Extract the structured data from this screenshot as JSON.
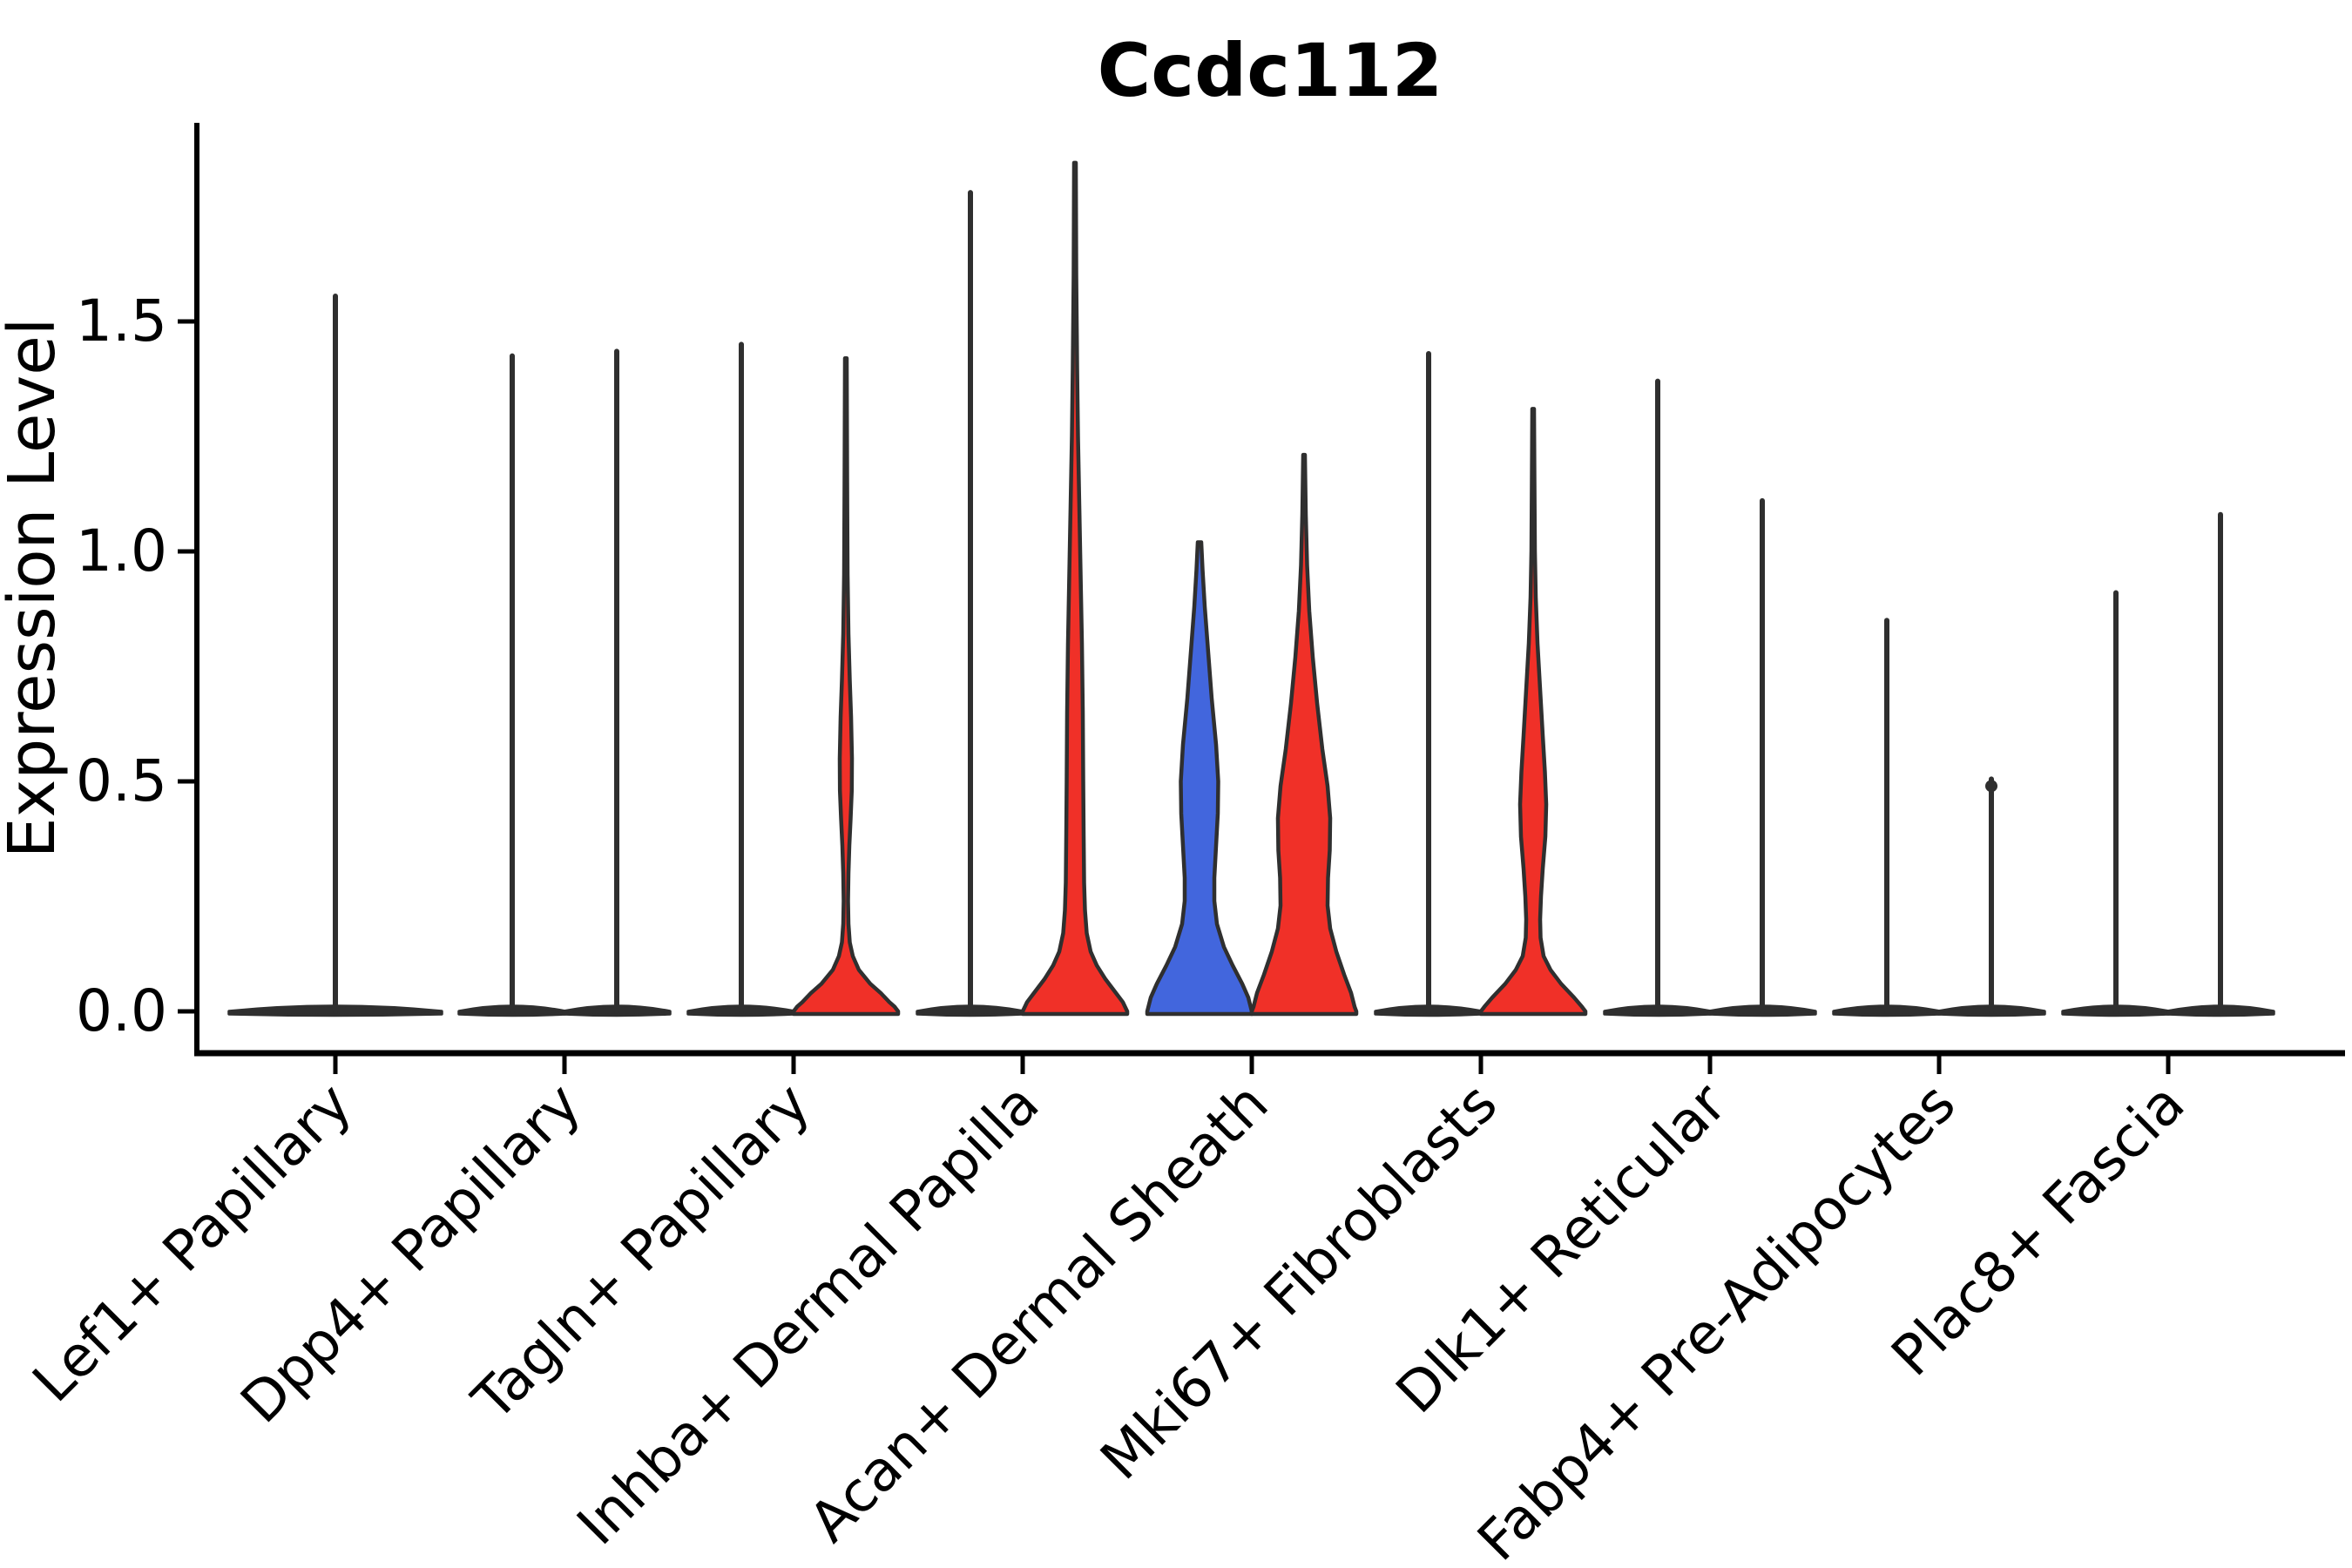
{
  "chart_data": {
    "type": "violin",
    "title": "Ccdc112",
    "xlabel": "",
    "ylabel": "Expression Level",
    "ylim": [
      0,
      1.9
    ],
    "yticks": [
      "0.0",
      "0.5",
      "1.0",
      "1.5"
    ],
    "ytick_values": [
      0.0,
      0.5,
      1.0,
      1.5
    ],
    "legend_position": "none",
    "grid": false,
    "palette": {
      "red": "#f03028",
      "blue": "#4266dd",
      "edge": "#2f2f2f",
      "text": "#000000"
    },
    "categories": [
      {
        "label": "Lef1+ Papillary",
        "violins": [
          {
            "pos": "center",
            "color": "none",
            "max": 1.555
          }
        ]
      },
      {
        "label": "Dpp4+ Papillary",
        "violins": [
          {
            "pos": "left",
            "color": "none",
            "max": 1.425
          },
          {
            "pos": "right",
            "color": "none",
            "max": 1.435
          }
        ]
      },
      {
        "label": "Tagln+ Papillary",
        "violins": [
          {
            "pos": "left",
            "color": "none",
            "max": 1.45
          },
          {
            "pos": "right",
            "color": "red",
            "max": 1.42,
            "profile": [
              [
                1.42,
                1
              ],
              [
                1.15,
                1.5
              ],
              [
                0.95,
                2
              ],
              [
                0.82,
                3
              ],
              [
                0.72,
                4.5
              ],
              [
                0.64,
                6
              ],
              [
                0.55,
                7
              ],
              [
                0.48,
                6.8
              ],
              [
                0.42,
                5.5
              ],
              [
                0.36,
                4
              ],
              [
                0.3,
                3
              ],
              [
                0.24,
                2.5
              ],
              [
                0.19,
                3
              ],
              [
                0.15,
                4.5
              ],
              [
                0.12,
                8
              ],
              [
                0.09,
                15
              ],
              [
                0.06,
                28
              ],
              [
                0.04,
                40
              ],
              [
                0.02,
                50
              ],
              [
                0.01,
                56
              ],
              [
                0,
                60
              ]
            ]
          }
        ]
      },
      {
        "label": "Inhba+ Dermal Papilla",
        "violins": [
          {
            "pos": "left",
            "color": "none",
            "max": 1.78
          },
          {
            "pos": "right",
            "color": "red",
            "max": 1.845,
            "profile": [
              [
                1.845,
                1
              ],
              [
                1.6,
                1.5
              ],
              [
                1.4,
                2.5
              ],
              [
                1.25,
                3.5
              ],
              [
                1.1,
                5
              ],
              [
                0.95,
                6.5
              ],
              [
                0.8,
                8
              ],
              [
                0.65,
                9
              ],
              [
                0.5,
                9.5
              ],
              [
                0.38,
                10
              ],
              [
                0.28,
                10.5
              ],
              [
                0.22,
                11.5
              ],
              [
                0.17,
                13.5
              ],
              [
                0.13,
                18
              ],
              [
                0.1,
                25
              ],
              [
                0.07,
                35
              ],
              [
                0.04,
                47
              ],
              [
                0.02,
                55
              ],
              [
                0,
                60
              ]
            ]
          }
        ]
      },
      {
        "label": "Acan+ Dermal Sheath",
        "violins": [
          {
            "pos": "left",
            "color": "blue",
            "max": 1.02,
            "profile": [
              [
                1.02,
                2
              ],
              [
                0.96,
                3.5
              ],
              [
                0.88,
                6
              ],
              [
                0.78,
                10
              ],
              [
                0.68,
                14
              ],
              [
                0.58,
                19
              ],
              [
                0.5,
                21.5
              ],
              [
                0.43,
                21
              ],
              [
                0.36,
                19
              ],
              [
                0.29,
                17
              ],
              [
                0.24,
                17
              ],
              [
                0.19,
                20
              ],
              [
                0.14,
                28
              ],
              [
                0.1,
                38
              ],
              [
                0.06,
                49
              ],
              [
                0.03,
                56
              ],
              [
                0,
                60
              ]
            ]
          },
          {
            "pos": "right",
            "color": "red",
            "max": 1.21,
            "profile": [
              [
                1.21,
                1
              ],
              [
                1.08,
                2
              ],
              [
                0.97,
                3.5
              ],
              [
                0.87,
                6
              ],
              [
                0.77,
                10
              ],
              [
                0.67,
                15
              ],
              [
                0.57,
                21
              ],
              [
                0.49,
                27
              ],
              [
                0.42,
                30
              ],
              [
                0.35,
                29.5
              ],
              [
                0.29,
                27.5
              ],
              [
                0.23,
                27
              ],
              [
                0.18,
                30
              ],
              [
                0.13,
                37
              ],
              [
                0.08,
                46
              ],
              [
                0.04,
                54
              ],
              [
                0.01,
                58
              ],
              [
                0,
                60
              ]
            ]
          }
        ]
      },
      {
        "label": "Mki67+ Fibroblasts",
        "violins": [
          {
            "pos": "left",
            "color": "none",
            "max": 1.43
          },
          {
            "pos": "right",
            "color": "red",
            "max": 1.31,
            "profile": [
              [
                1.31,
                1
              ],
              [
                1.15,
                1.5
              ],
              [
                1.0,
                2
              ],
              [
                0.9,
                3
              ],
              [
                0.8,
                5
              ],
              [
                0.7,
                8
              ],
              [
                0.6,
                11
              ],
              [
                0.52,
                13.5
              ],
              [
                0.45,
                15
              ],
              [
                0.38,
                14
              ],
              [
                0.31,
                11
              ],
              [
                0.25,
                9
              ],
              [
                0.2,
                8
              ],
              [
                0.16,
                8.5
              ],
              [
                0.12,
                12
              ],
              [
                0.09,
                20
              ],
              [
                0.06,
                32
              ],
              [
                0.03,
                47
              ],
              [
                0.01,
                56
              ],
              [
                0,
                60
              ]
            ]
          }
        ]
      },
      {
        "label": "Dlk1+ Reticular",
        "violins": [
          {
            "pos": "left",
            "color": "none",
            "max": 1.37
          },
          {
            "pos": "right",
            "color": "none",
            "max": 1.11
          }
        ]
      },
      {
        "label": "Fabp4+ Pre-Adipocytes",
        "violins": [
          {
            "pos": "left",
            "color": "none",
            "max": 0.85
          },
          {
            "pos": "right",
            "color": "none",
            "max": 0.505,
            "knob": true
          }
        ]
      },
      {
        "label": "Plac8+ Fascia",
        "violins": [
          {
            "pos": "left",
            "color": "none",
            "max": 0.91
          },
          {
            "pos": "right",
            "color": "none",
            "max": 1.08
          }
        ]
      }
    ]
  }
}
